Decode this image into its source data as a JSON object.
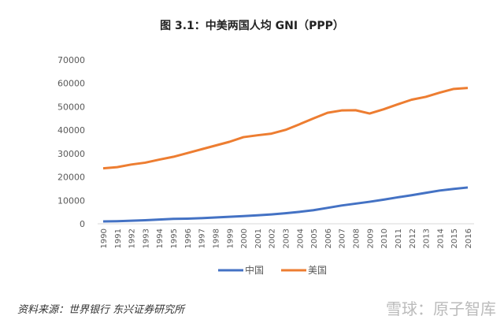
{
  "chart_data": {
    "type": "line",
    "title": "图 3.1：中美两国人均 GNI（PPP）",
    "x": [
      1990,
      1991,
      1992,
      1993,
      1994,
      1995,
      1996,
      1997,
      1998,
      1999,
      2000,
      2001,
      2002,
      2003,
      2004,
      2005,
      2006,
      2007,
      2008,
      2009,
      2010,
      2011,
      2012,
      2013,
      2014,
      2015,
      2016
    ],
    "series": [
      {
        "name": "中国",
        "color": "#4472c4",
        "values": [
          990,
          1100,
          1300,
          1500,
          1800,
          2100,
          2200,
          2400,
          2700,
          3000,
          3300,
          3600,
          4000,
          4500,
          5100,
          5800,
          6800,
          7800,
          8600,
          9400,
          10300,
          11300,
          12200,
          13200,
          14200,
          14900,
          15500
        ]
      },
      {
        "name": "美国",
        "color": "#ed7d31",
        "values": [
          23700,
          24200,
          25300,
          26100,
          27400,
          28600,
          30200,
          31800,
          33400,
          35000,
          37000,
          37800,
          38500,
          40100,
          42500,
          45000,
          47400,
          48400,
          48500,
          47100,
          48900,
          51000,
          53000,
          54200,
          56000,
          57600,
          58000
        ]
      }
    ],
    "yticks": [
      "0",
      "10000",
      "20000",
      "30000",
      "40000",
      "50000",
      "60000",
      "70000"
    ],
    "ylim": [
      0,
      70000
    ],
    "grid": false,
    "legend": "bottom"
  },
  "source": "资料来源：世界银行 东兴证券研究所",
  "watermark": "雪球：原子智库"
}
